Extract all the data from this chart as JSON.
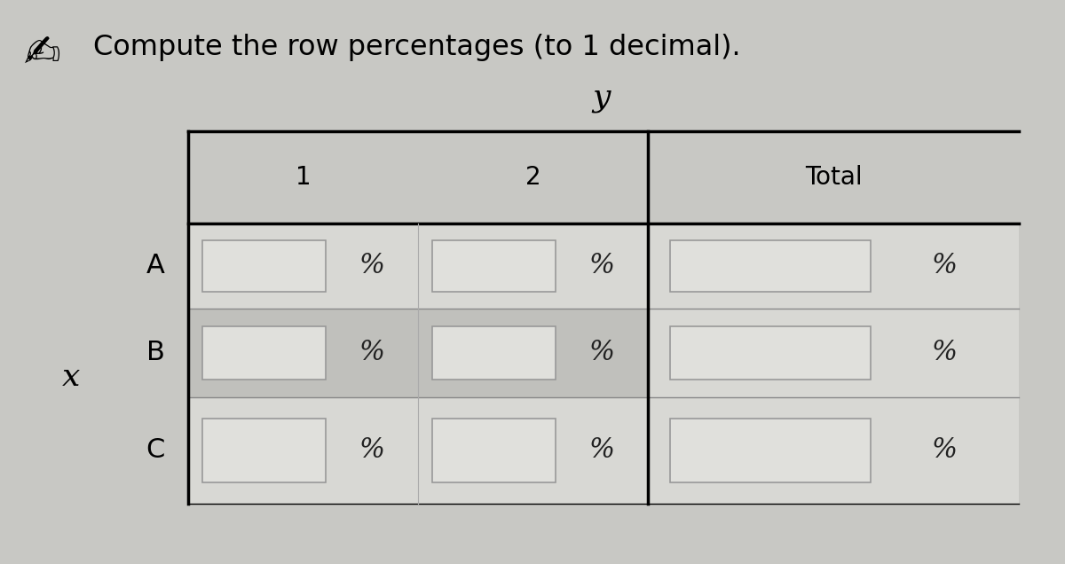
{
  "title": "Compute the row percentages (to 1 decimal).",
  "x_label": "x",
  "y_label": "y",
  "col_headers": [
    "1",
    "2",
    "Total"
  ],
  "row_headers": [
    "A",
    "B",
    "C"
  ],
  "bg_color": "#c8c8c4",
  "cell_bg_light": "#d8d8d4",
  "cell_bg_medium": "#c0c0bc",
  "input_box_color": "#e0e0dc",
  "title_fontsize": 23,
  "header_fontsize": 20,
  "cell_fontsize": 20,
  "label_fontsize": 22,
  "percent_symbol": "%"
}
